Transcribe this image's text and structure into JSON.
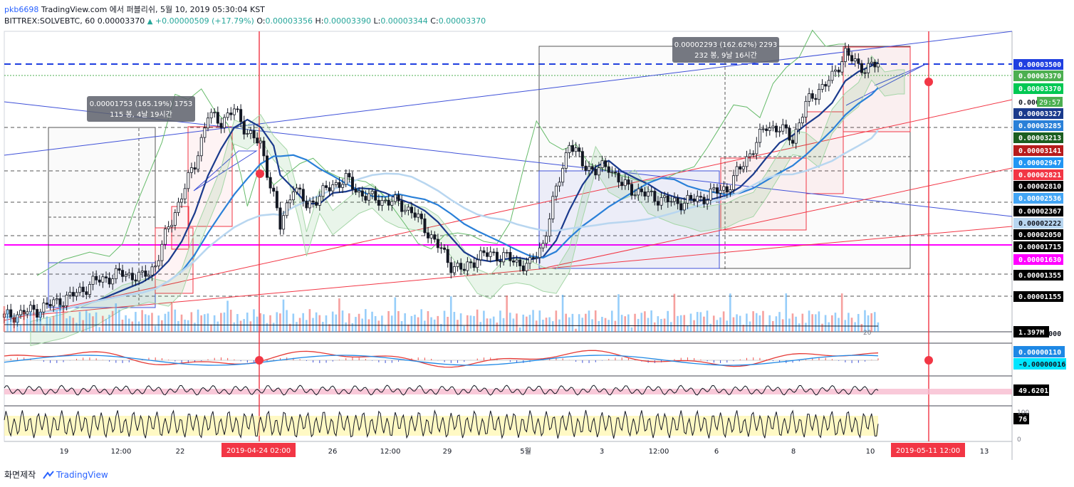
{
  "header": {
    "user": "pkb6698",
    "line1_rest": "TradingView.com 에서 퍼블리쉬, 5월 10, 2019 05:30:04 KST",
    "symbol": "BITTREX:SOLVEBTC, 60",
    "last": "0.00003370",
    "change": "+0.00000509 (+17.79%)",
    "o_label": "O:",
    "o": "0.00003356",
    "h_label": "H:",
    "h": "0.00003390",
    "l_label": "L:",
    "l": "0.00003344",
    "c_label": "C:",
    "c": "0.00003370"
  },
  "footer": {
    "made_by": "화면제작",
    "brand": "TradingView"
  },
  "colors": {
    "up": "#26a69a",
    "down": "#ef5350",
    "trend_blue": "#3f51d8",
    "trend_red": "#f23645",
    "ma_dark": "#1a3a8c",
    "ma_mid": "#2a80d8",
    "ma_light": "#b8d6f0",
    "magenta": "#ff00ff"
  },
  "chart_data": {
    "type": "candlestick",
    "x_ticks": [
      "19",
      "12:00",
      "22",
      "2019-04-24  02:00",
      "26",
      "12:00",
      "29",
      "5월",
      "3",
      "12:00",
      "6",
      "8",
      "10",
      "2019-05-11  12:00",
      "13"
    ],
    "price_scale": [
      "0.00003500",
      "0.00003370",
      "0.00003370",
      "0.000",
      "0.00003327",
      "0.00003285",
      "0.00003213",
      "0.00003141",
      "0.00002947",
      "0.00002821",
      "0.00002810",
      "0.00002536",
      "0.00002367",
      "0.00002222",
      "0.00002050",
      "0.00001715",
      "0.00001630",
      "0.00001355",
      "0.00001155",
      "0.00001000"
    ],
    "countdown": "29:57",
    "ylim": [
      9e-06,
      3.65e-05
    ],
    "measure_boxes": [
      {
        "line1": "0.00001753 (165.19%) 1753",
        "line2": "115 봉, 4날 19시간"
      },
      {
        "line1": "0.00002293 (162.62%) 2293",
        "line2": "232 봉, 9날 16시간"
      }
    ],
    "volume_label": "1.397M",
    "macd_labels": [
      "0.00000110",
      "-0.00000016"
    ],
    "rsi_label": "49.6201",
    "stoch_label": "76",
    "stoch_ticks": [
      "100",
      "0"
    ],
    "vol_tick": "20",
    "price_path": [
      [
        0,
        1.01e-05
      ],
      [
        10,
        1.08e-05
      ],
      [
        20,
        1.2e-05
      ],
      [
        28,
        1.35e-05
      ],
      [
        36,
        1.42e-05
      ],
      [
        42,
        1.38e-05
      ],
      [
        46,
        1.5e-05
      ],
      [
        50,
        1.85e-05
      ],
      [
        54,
        2.15e-05
      ],
      [
        58,
        2.45e-05
      ],
      [
        62,
        2.9e-05
      ],
      [
        66,
        2.85e-05
      ],
      [
        70,
        2.95e-05
      ],
      [
        74,
        2.75e-05
      ],
      [
        78,
        2.62e-05
      ],
      [
        82,
        2.15e-05
      ],
      [
        84,
        1.85e-05
      ],
      [
        88,
        2.25e-05
      ],
      [
        92,
        2.05e-05
      ],
      [
        96,
        2.15e-05
      ],
      [
        100,
        2.25e-05
      ],
      [
        104,
        2.3e-05
      ],
      [
        108,
        2.18e-05
      ],
      [
        112,
        2.12e-05
      ],
      [
        116,
        2.1e-05
      ],
      [
        120,
        2.08e-05
      ],
      [
        124,
        2e-05
      ],
      [
        128,
        1.85e-05
      ],
      [
        132,
        1.68e-05
      ],
      [
        136,
        1.5e-05
      ],
      [
        140,
        1.45e-05
      ],
      [
        144,
        1.58e-05
      ],
      [
        148,
        1.6e-05
      ],
      [
        152,
        1.58e-05
      ],
      [
        156,
        1.52e-05
      ],
      [
        160,
        1.5e-05
      ],
      [
        164,
        1.7e-05
      ],
      [
        168,
        2.2e-05
      ],
      [
        172,
        2.65e-05
      ],
      [
        176,
        2.45e-05
      ],
      [
        180,
        2.38e-05
      ],
      [
        184,
        2.43e-05
      ],
      [
        188,
        2.25e-05
      ],
      [
        192,
        2.2e-05
      ],
      [
        196,
        2.15e-05
      ],
      [
        200,
        2.12e-05
      ],
      [
        204,
        2.08e-05
      ],
      [
        208,
        2.1e-05
      ],
      [
        212,
        2.12e-05
      ],
      [
        216,
        2.18e-05
      ],
      [
        220,
        2.22e-05
      ],
      [
        224,
        2.4e-05
      ],
      [
        228,
        2.6e-05
      ],
      [
        232,
        2.8e-05
      ],
      [
        236,
        2.78e-05
      ],
      [
        240,
        2.68e-05
      ],
      [
        244,
        3e-05
      ],
      [
        248,
        3.15e-05
      ],
      [
        252,
        3.25e-05
      ],
      [
        256,
        3.5e-05
      ],
      [
        260,
        3.35e-05
      ],
      [
        264,
        3.37e-05
      ],
      [
        266,
        3.37e-05
      ]
    ]
  }
}
